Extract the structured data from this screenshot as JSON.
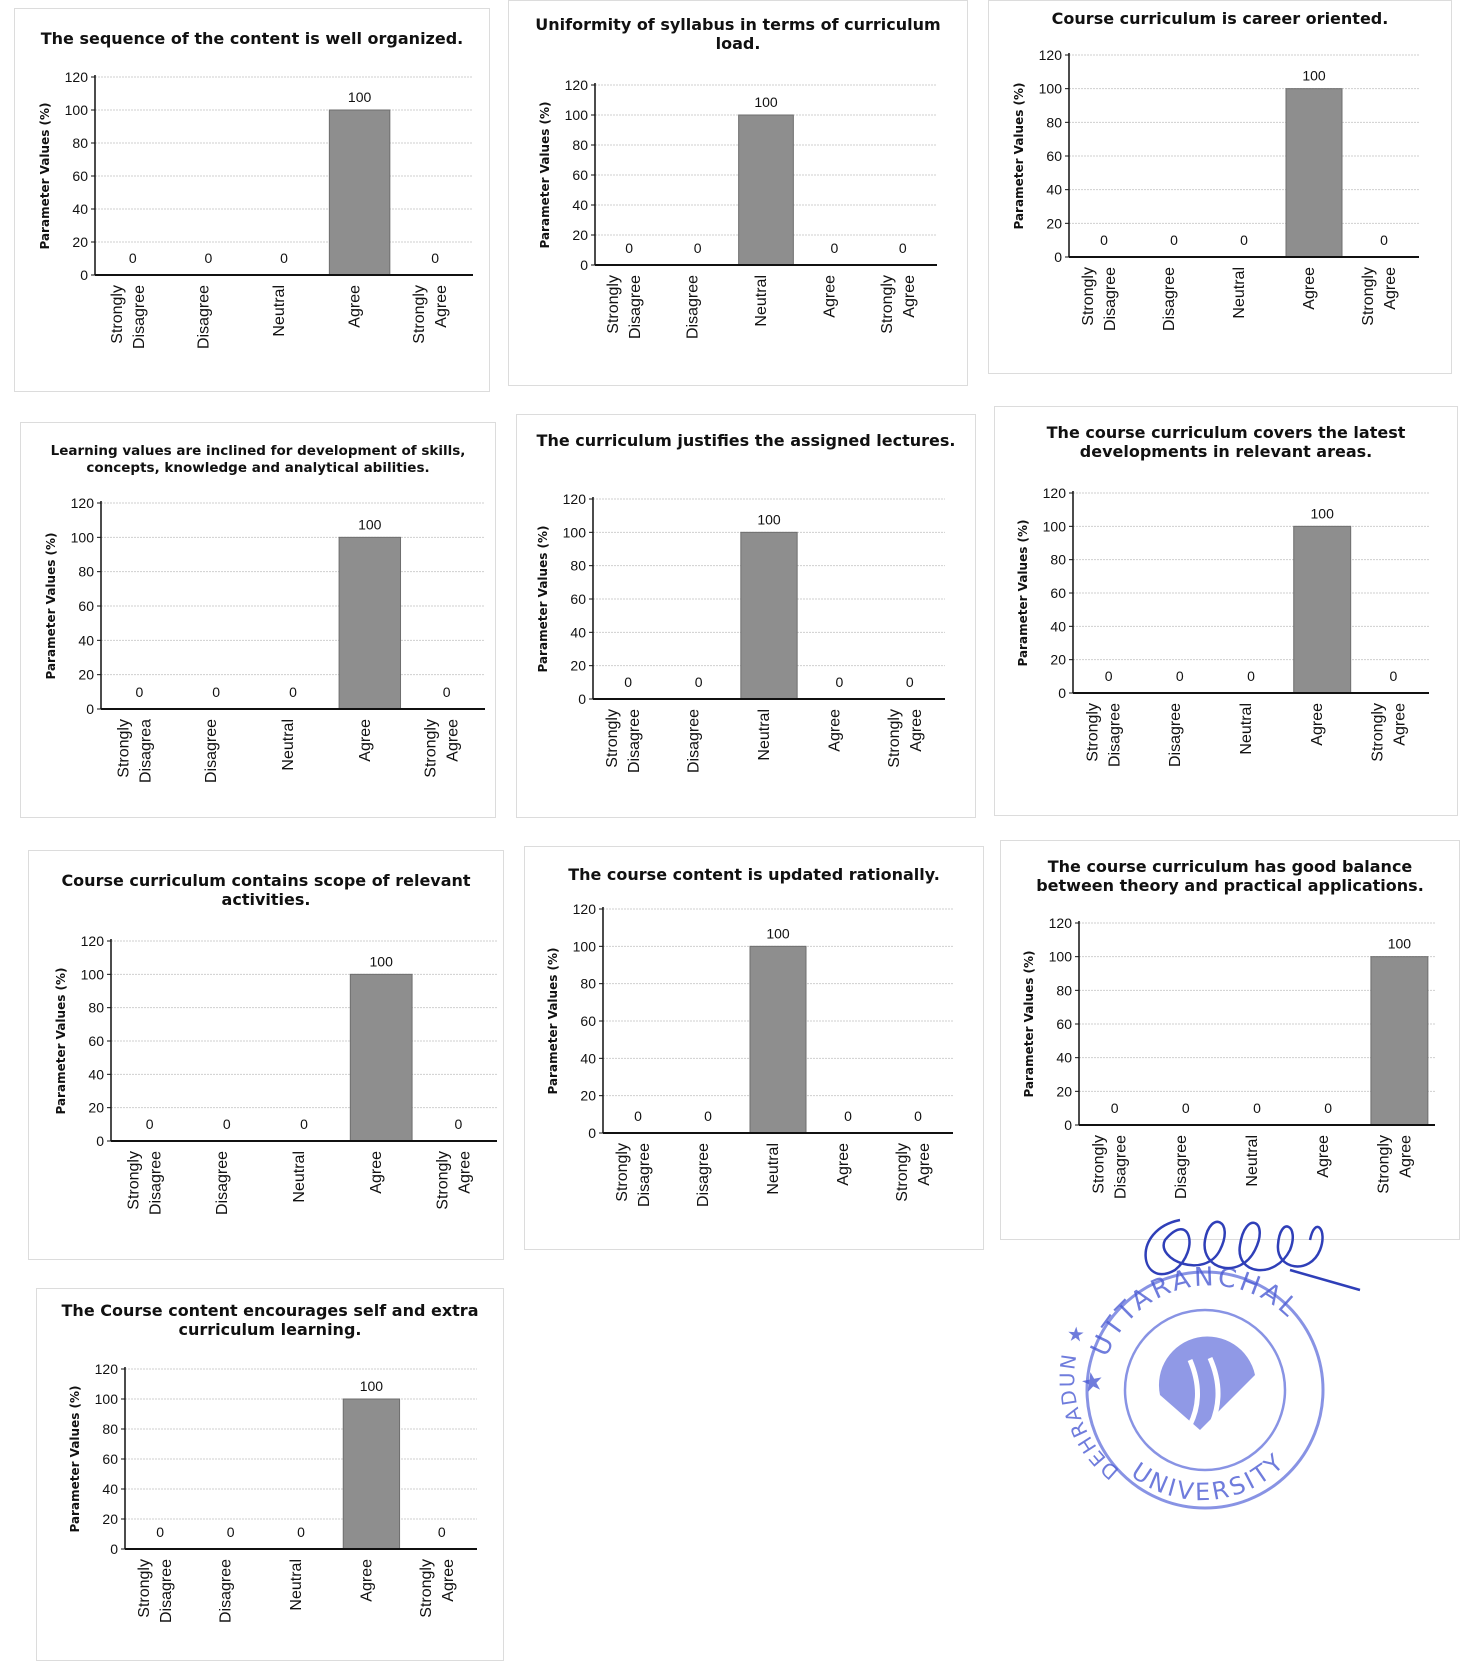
{
  "colors": {
    "bar": "#8e8e8e",
    "axis": "#111111",
    "grid": "#cfcfcf",
    "ink": "#2f3fb8"
  },
  "stamp": {
    "text_top": "★ UTTARANCHAL",
    "text_bottom": "UNIVERSITY",
    "text_left": "DEHRADUN ★"
  },
  "chart_data": [
    {
      "type": "bar",
      "title": "The sequence of the content is well organized.",
      "categories": [
        "Strongly Disagree",
        "Disagree",
        "Neutral",
        "Agree",
        "Strongly Agree"
      ],
      "values": [
        0,
        0,
        0,
        100,
        0
      ],
      "ylabel": "Parameter Values (%)",
      "xlabel": "",
      "ylim": [
        0,
        120
      ],
      "yticks": [
        0,
        20,
        40,
        60,
        80,
        100,
        120
      ],
      "grid": true,
      "legend": "none"
    },
    {
      "type": "bar",
      "title": "Uniformity of syllabus in terms of curriculum load.",
      "categories": [
        "Strongly Disagree",
        "Disagree",
        "Neutral",
        "Agree",
        "Strongly Agree"
      ],
      "values": [
        0,
        0,
        100,
        0,
        0
      ],
      "ylabel": "Parameter Values (%)",
      "xlabel": "",
      "ylim": [
        0,
        120
      ],
      "yticks": [
        0,
        20,
        40,
        60,
        80,
        100,
        120
      ],
      "grid": true,
      "legend": "none"
    },
    {
      "type": "bar",
      "title": "Course curriculum is career oriented.",
      "categories": [
        "Strongly Disagree",
        "Disagree",
        "Neutral",
        "Agree",
        "Strongly Agree"
      ],
      "values": [
        0,
        0,
        0,
        100,
        0
      ],
      "ylabel": "Parameter Values (%)",
      "xlabel": "",
      "ylim": [
        0,
        120
      ],
      "yticks": [
        0,
        20,
        40,
        60,
        80,
        100,
        120
      ],
      "grid": true,
      "legend": "none"
    },
    {
      "type": "bar",
      "title": "Learning values are inclined for development of skills, concepts, knowledge and analytical abilities.",
      "categories": [
        "Strongly Disagrea",
        "Disagree",
        "Neutral",
        "Agree",
        "Strongly Agree"
      ],
      "values": [
        0,
        0,
        0,
        100,
        0
      ],
      "ylabel": "Parameter Values (%)",
      "xlabel": "",
      "ylim": [
        0,
        120
      ],
      "yticks": [
        0,
        20,
        40,
        60,
        80,
        100,
        120
      ],
      "grid": true,
      "legend": "none"
    },
    {
      "type": "bar",
      "title": "The curriculum justifies the assigned lectures.",
      "categories": [
        "Strongly Disagree",
        "Disagree",
        "Neutral",
        "Agree",
        "Strongly Agree"
      ],
      "values": [
        0,
        0,
        100,
        0,
        0
      ],
      "ylabel": "Parameter Values (%)",
      "xlabel": "",
      "ylim": [
        0,
        120
      ],
      "yticks": [
        0,
        20,
        40,
        60,
        80,
        100,
        120
      ],
      "grid": true,
      "legend": "none"
    },
    {
      "type": "bar",
      "title": "The course curriculum covers the latest developments in relevant areas.",
      "categories": [
        "Strongly Disagree",
        "Disagree",
        "Neutral",
        "Agree",
        "Strongly Agree"
      ],
      "values": [
        0,
        0,
        0,
        100,
        0
      ],
      "ylabel": "Parameter Values (%)",
      "xlabel": "",
      "ylim": [
        0,
        120
      ],
      "yticks": [
        0,
        20,
        40,
        60,
        80,
        100,
        120
      ],
      "grid": true,
      "legend": "none"
    },
    {
      "type": "bar",
      "title": "Course curriculum contains scope of relevant activities.",
      "categories": [
        "Strongly Disagree",
        "Disagree",
        "Neutral",
        "Agree",
        "Strongly Agree"
      ],
      "values": [
        0,
        0,
        0,
        100,
        0
      ],
      "ylabel": "Parameter Values (%)",
      "xlabel": "",
      "ylim": [
        0,
        120
      ],
      "yticks": [
        0,
        20,
        40,
        60,
        80,
        100,
        120
      ],
      "grid": true,
      "legend": "none"
    },
    {
      "type": "bar",
      "title": "The course content is updated rationally.",
      "categories": [
        "Strongly Disagree",
        "Disagree",
        "Neutral",
        "Agree",
        "Strongly Agree"
      ],
      "values": [
        0,
        0,
        100,
        0,
        0
      ],
      "ylabel": "Parameter Values (%)",
      "xlabel": "",
      "ylim": [
        0,
        120
      ],
      "yticks": [
        0,
        20,
        40,
        60,
        80,
        100,
        120
      ],
      "grid": true,
      "legend": "none"
    },
    {
      "type": "bar",
      "title": "The course curriculum has good balance between theory and practical applications.",
      "categories": [
        "Strongly Disagree",
        "Disagree",
        "Neutral",
        "Agree",
        "Strongly Agree"
      ],
      "values": [
        0,
        0,
        0,
        0,
        100
      ],
      "ylabel": "Parameter Values (%)",
      "xlabel": "",
      "ylim": [
        0,
        120
      ],
      "yticks": [
        0,
        20,
        40,
        60,
        80,
        100,
        120
      ],
      "grid": true,
      "legend": "none"
    },
    {
      "type": "bar",
      "title": "The Course content encourages self and extra curriculum learning.",
      "categories": [
        "Strongly Disagree",
        "Disagree",
        "Neutral",
        "Agree",
        "Strongly Agree"
      ],
      "values": [
        0,
        0,
        0,
        100,
        0
      ],
      "ylabel": "Parameter Values (%)",
      "xlabel": "",
      "ylim": [
        0,
        120
      ],
      "yticks": [
        0,
        20,
        40,
        60,
        80,
        100,
        120
      ],
      "grid": true,
      "legend": "none"
    }
  ]
}
